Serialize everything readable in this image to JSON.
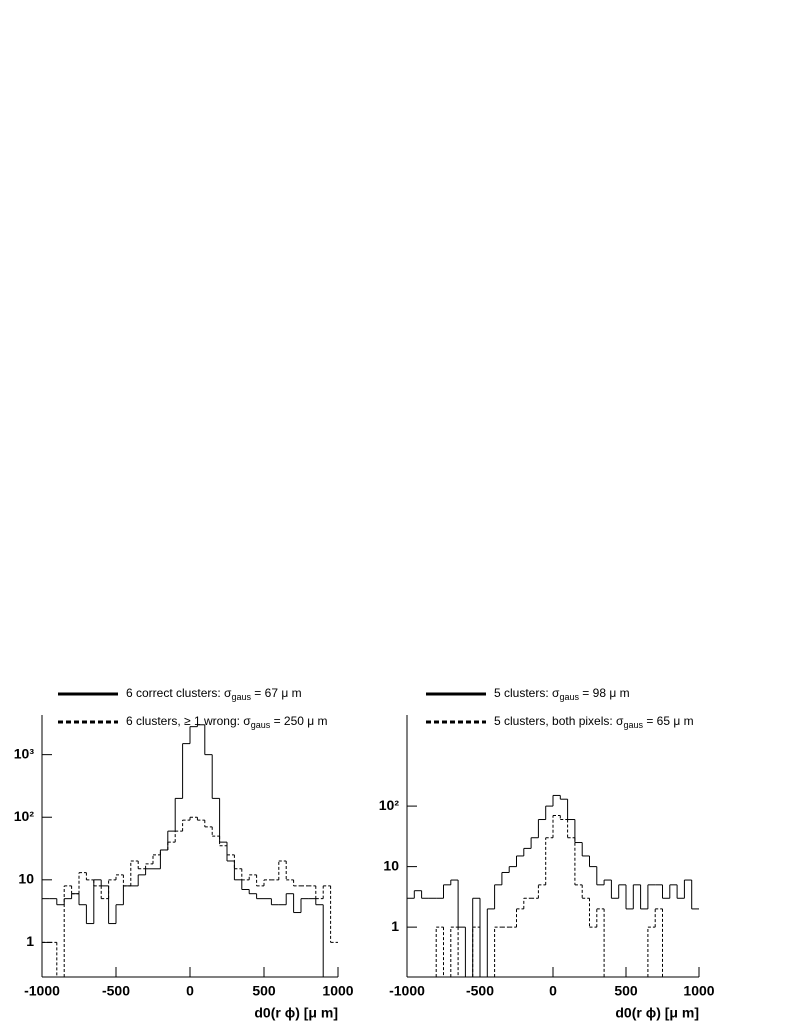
{
  "chart_data": [
    {
      "type": "histogram",
      "log_y": true,
      "bins": [
        -1000,
        -950,
        -900,
        -850,
        -800,
        -750,
        -700,
        -650,
        -600,
        -550,
        -500,
        -450,
        -400,
        -350,
        -300,
        -250,
        -200,
        -150,
        -100,
        -50,
        0,
        50,
        100,
        150,
        200,
        250,
        300,
        350,
        400,
        450,
        500,
        550,
        600,
        650,
        700,
        750,
        800,
        850,
        900,
        950,
        1000
      ],
      "series": [
        {
          "name": [
            "6 correct clusters: σ",
            "gaus",
            " = 67 μ m"
          ],
          "color": "#000000",
          "dash": "solid",
          "values": [
            5,
            5,
            4,
            5,
            6,
            4,
            2,
            10,
            8,
            2,
            4,
            8,
            8,
            12,
            15,
            15,
            30,
            60,
            200,
            1500,
            2800,
            3000,
            1000,
            200,
            40,
            20,
            10,
            7,
            6,
            5,
            5,
            4,
            4,
            6,
            3,
            5,
            5,
            4,
            0,
            0
          ]
        },
        {
          "name": [
            "6 clusters, ≥ 1 wrong: σ",
            "gaus",
            " = 250 μ m"
          ],
          "color": "#000000",
          "dash": "dashed",
          "values": [
            1,
            1,
            0,
            8,
            6,
            13,
            10,
            8,
            5,
            10,
            12,
            8,
            20,
            15,
            18,
            25,
            30,
            40,
            60,
            90,
            100,
            90,
            70,
            50,
            35,
            25,
            15,
            10,
            12,
            8,
            10,
            10,
            20,
            10,
            8,
            8,
            8,
            5,
            8,
            1
          ]
        }
      ],
      "xlim": [
        -1000,
        1000
      ],
      "ylim": [
        0.28,
        4300
      ],
      "xticks": [
        -1000,
        -500,
        0,
        500,
        1000
      ],
      "yticks": [
        1,
        10,
        {
          "value": 100,
          "label": "10²"
        },
        {
          "value": 1000,
          "label": "10³"
        }
      ],
      "xlabel": "d0(r ϕ) [μ m]"
    },
    {
      "type": "histogram",
      "log_y": true,
      "bins": [
        -1000,
        -950,
        -900,
        -850,
        -800,
        -750,
        -700,
        -650,
        -600,
        -550,
        -500,
        -450,
        -400,
        -350,
        -300,
        -250,
        -200,
        -150,
        -100,
        -50,
        0,
        50,
        100,
        150,
        200,
        250,
        300,
        350,
        400,
        450,
        500,
        550,
        600,
        650,
        700,
        750,
        800,
        850,
        900,
        950,
        1000
      ],
      "series": [
        {
          "name": [
            "5 clusters: σ",
            "gaus",
            " = 98 μ m"
          ],
          "color": "#000000",
          "dash": "solid",
          "values": [
            3,
            4,
            3,
            3,
            3,
            5,
            6,
            1,
            0,
            3,
            0,
            2,
            5,
            8,
            10,
            15,
            20,
            30,
            60,
            100,
            150,
            130,
            60,
            25,
            15,
            10,
            5,
            6,
            3,
            5,
            2,
            5,
            2,
            5,
            5,
            3,
            5,
            3,
            6,
            2
          ]
        },
        {
          "name": [
            "5 clusters, both pixels: σ",
            "gaus",
            " = 65 μ m"
          ],
          "color": "#000000",
          "dash": "dashed",
          "values": [
            0,
            0,
            0,
            0,
            1,
            0,
            1,
            0,
            0,
            1,
            0,
            0,
            1,
            1,
            1,
            2,
            3,
            3,
            5,
            30,
            70,
            60,
            30,
            5,
            3,
            1,
            2,
            0,
            0,
            0,
            0,
            0,
            0,
            1,
            2,
            0,
            0,
            0,
            0,
            0
          ]
        }
      ],
      "xlim": [
        -1000,
        1000
      ],
      "ylim": [
        0.15,
        3200
      ],
      "xticks": [
        -1000,
        -500,
        0,
        500,
        1000
      ],
      "yticks": [
        1,
        10,
        {
          "value": 100,
          "label": "10²"
        }
      ],
      "xlabel": "d0(r ϕ) [μ m]"
    }
  ]
}
